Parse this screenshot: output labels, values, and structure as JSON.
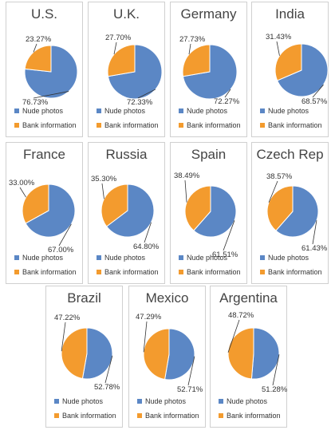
{
  "colors": {
    "nude": "#5b87c5",
    "bank": "#f39b2e"
  },
  "chart_data": [
    {
      "type": "pie",
      "title": "U.S.",
      "categories": [
        "Nude photos",
        "Bank information"
      ],
      "values": [
        76.73,
        23.27
      ],
      "labels": [
        "76.73%",
        "23.27%"
      ],
      "legend": "bottom"
    },
    {
      "type": "pie",
      "title": "U.K.",
      "categories": [
        "Nude photos",
        "Bank information"
      ],
      "values": [
        72.33,
        27.7
      ],
      "labels": [
        "72.33%",
        "27.70%"
      ],
      "legend": "bottom"
    },
    {
      "type": "pie",
      "title": "Germany",
      "categories": [
        "Nude photos",
        "Bank information"
      ],
      "values": [
        72.27,
        27.73
      ],
      "labels": [
        "72.27%",
        "27.73%"
      ],
      "legend": "bottom"
    },
    {
      "type": "pie",
      "title": "India",
      "categories": [
        "Nude photos",
        "Bank information"
      ],
      "values": [
        68.57,
        31.43
      ],
      "labels": [
        "68.57%",
        "31.43%"
      ],
      "legend": "bottom"
    },
    {
      "type": "pie",
      "title": "France",
      "categories": [
        "Nude photos",
        "Bank information"
      ],
      "values": [
        67.0,
        33.0
      ],
      "labels": [
        "67.00%",
        "33.00%"
      ],
      "legend": "bottom"
    },
    {
      "type": "pie",
      "title": "Russia",
      "categories": [
        "Nude photos",
        "Bank information"
      ],
      "values": [
        64.8,
        35.3
      ],
      "labels": [
        "64.80%",
        "35.30%"
      ],
      "legend": "bottom"
    },
    {
      "type": "pie",
      "title": "Spain",
      "categories": [
        "Nude photos",
        "Bank information"
      ],
      "values": [
        61.51,
        38.49
      ],
      "labels": [
        "61.51%",
        "38.49%"
      ],
      "legend": "bottom"
    },
    {
      "type": "pie",
      "title": "Czech Rep",
      "categories": [
        "Nude photos",
        "Bank information"
      ],
      "values": [
        61.43,
        38.57
      ],
      "labels": [
        "61.43%",
        "38.57%"
      ],
      "legend": "bottom"
    },
    {
      "type": "pie",
      "title": "Brazil",
      "categories": [
        "Nude photos",
        "Bank information"
      ],
      "values": [
        52.78,
        47.22
      ],
      "labels": [
        "52.78%",
        "47.22%"
      ],
      "legend": "bottom"
    },
    {
      "type": "pie",
      "title": "Mexico",
      "categories": [
        "Nude photos",
        "Bank information"
      ],
      "values": [
        52.71,
        47.29
      ],
      "labels": [
        "52.71%",
        "47.29%"
      ],
      "legend": "bottom"
    },
    {
      "type": "pie",
      "title": "Argentina",
      "categories": [
        "Nude photos",
        "Bank information"
      ],
      "values": [
        51.28,
        48.72
      ],
      "labels": [
        "51.28%",
        "48.72%"
      ],
      "legend": "bottom"
    }
  ]
}
